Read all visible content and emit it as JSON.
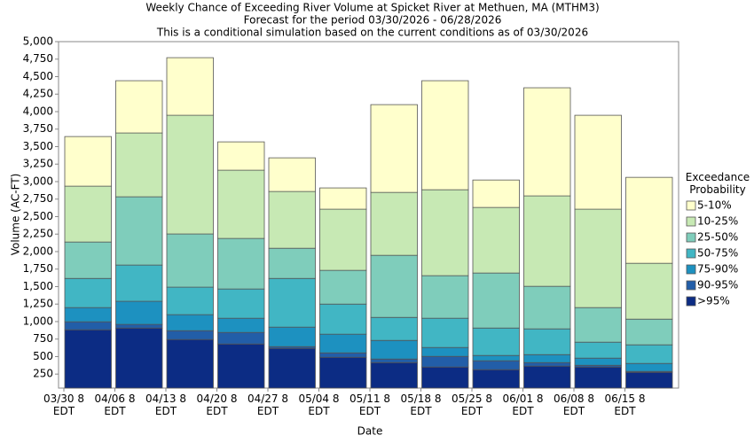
{
  "chart_data": {
    "type": "stacked_bar",
    "title": "Weekly Chance of Exceeding River Volume at Spicket River at Methuen, MA (MTHM3)",
    "subtitle": [
      "Forecast for the period 03/30/2026 - 06/28/2026",
      "This is a conditional simulation based on the current conditions as of 03/30/2026"
    ],
    "x_label": "Date",
    "y_label": "Volume (AC-FT)",
    "legend_title": "Exceedance Probability",
    "legend_position": "right",
    "categories": [
      "03/30 8 EDT",
      "04/06 8 EDT",
      "04/13 8 EDT",
      "04/20 8 EDT",
      "04/27 8 EDT",
      "05/04 8 EDT",
      "05/11 8 EDT",
      "05/18 8 EDT",
      "05/25 8 EDT",
      "06/01 8 EDT",
      "06/08 8 EDT",
      "06/15 8 EDT"
    ],
    "series": [
      {
        "name": ">95%",
        "color": "#0c2c84",
        "values": [
          883,
          908,
          744,
          680,
          617,
          490,
          414,
          351,
          313,
          364,
          351,
          275
        ]
      },
      {
        "name": "90-95%",
        "color": "#225ea8",
        "values": [
          114,
          52,
          126,
          165,
          25,
          63,
          51,
          152,
          127,
          50,
          25,
          13
        ]
      },
      {
        "name": "75-90%",
        "color": "#1d91c0",
        "values": [
          203,
          330,
          229,
          203,
          279,
          267,
          266,
          127,
          76,
          114,
          102,
          114
        ]
      },
      {
        "name": "50-75%",
        "color": "#41b6c4",
        "values": [
          417,
          518,
          393,
          418,
          696,
          430,
          329,
          418,
          392,
          368,
          228,
          266
        ]
      },
      {
        "name": "25-50%",
        "color": "#7fcdbb",
        "values": [
          520,
          975,
          760,
          722,
          431,
          482,
          887,
          608,
          786,
          608,
          494,
          367
        ]
      },
      {
        "name": "10-25%",
        "color": "#c7e9b4",
        "values": [
          798,
          912,
          1696,
          975,
          811,
          874,
          899,
          1228,
          937,
          1292,
          1406,
          798
        ]
      },
      {
        "name": "5-10%",
        "color": "#ffffcc",
        "values": [
          709,
          747,
          823,
          405,
          481,
          304,
          1254,
          1558,
          392,
          1545,
          1342,
          1228
        ]
      }
    ],
    "ylim": [
      50,
      5000
    ],
    "yticks": [
      250,
      500,
      750,
      {
        "value": 1000,
        "label": "1,000"
      },
      {
        "value": 1250,
        "label": "1,250"
      },
      {
        "value": 1500,
        "label": "1,500"
      },
      {
        "value": 1750,
        "label": "1,750"
      },
      {
        "value": 2000,
        "label": "2,000"
      },
      {
        "value": 2250,
        "label": "2,250"
      },
      {
        "value": 2500,
        "label": "2,500"
      },
      {
        "value": 2750,
        "label": "2,750"
      },
      {
        "value": 3000,
        "label": "3,000"
      },
      {
        "value": 3250,
        "label": "3,250"
      },
      {
        "value": 3500,
        "label": "3,500"
      },
      {
        "value": 3750,
        "label": "3,750"
      },
      {
        "value": 4000,
        "label": "4,000"
      },
      {
        "value": 4250,
        "label": "4,250"
      },
      {
        "value": 4500,
        "label": "4,500"
      },
      {
        "value": 4750,
        "label": "4,750"
      },
      {
        "value": 5000,
        "label": "5,000"
      }
    ]
  }
}
